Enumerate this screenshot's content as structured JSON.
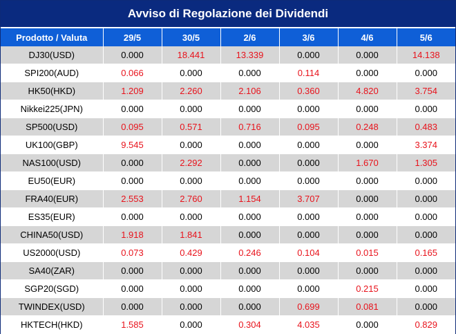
{
  "title": "Avviso di Regolazione dei Dividendi",
  "header": {
    "product": "Prodotto / Valuta",
    "dates": [
      "29/5",
      "30/5",
      "2/6",
      "3/6",
      "4/6",
      "5/6"
    ]
  },
  "colors": {
    "title_bg": "#0a2a7f",
    "header_bg": "#0f5fd7",
    "row_alt_bg": "#d6d6d6",
    "positive_text": "#e8121b",
    "zero_text": "#000000"
  },
  "rows": [
    {
      "product": "DJ30(USD)",
      "values": [
        "0.000",
        "18.441",
        "13.339",
        "0.000",
        "0.000",
        "14.138"
      ]
    },
    {
      "product": "SPI200(AUD)",
      "values": [
        "0.066",
        "0.000",
        "0.000",
        "0.114",
        "0.000",
        "0.000"
      ]
    },
    {
      "product": "HK50(HKD)",
      "values": [
        "1.209",
        "2.260",
        "2.106",
        "0.360",
        "4.820",
        "3.754"
      ]
    },
    {
      "product": "Nikkei225(JPN)",
      "values": [
        "0.000",
        "0.000",
        "0.000",
        "0.000",
        "0.000",
        "0.000"
      ]
    },
    {
      "product": "SP500(USD)",
      "values": [
        "0.095",
        "0.571",
        "0.716",
        "0.095",
        "0.248",
        "0.483"
      ]
    },
    {
      "product": "UK100(GBP)",
      "values": [
        "9.545",
        "0.000",
        "0.000",
        "0.000",
        "0.000",
        "3.374"
      ]
    },
    {
      "product": "NAS100(USD)",
      "values": [
        "0.000",
        "2.292",
        "0.000",
        "0.000",
        "1.670",
        "1.305"
      ]
    },
    {
      "product": "EU50(EUR)",
      "values": [
        "0.000",
        "0.000",
        "0.000",
        "0.000",
        "0.000",
        "0.000"
      ]
    },
    {
      "product": "FRA40(EUR)",
      "values": [
        "2.553",
        "2.760",
        "1.154",
        "3.707",
        "0.000",
        "0.000"
      ]
    },
    {
      "product": "ES35(EUR)",
      "values": [
        "0.000",
        "0.000",
        "0.000",
        "0.000",
        "0.000",
        "0.000"
      ]
    },
    {
      "product": "CHINA50(USD)",
      "values": [
        "1.918",
        "1.841",
        "0.000",
        "0.000",
        "0.000",
        "0.000"
      ]
    },
    {
      "product": "US2000(USD)",
      "values": [
        "0.073",
        "0.429",
        "0.246",
        "0.104",
        "0.015",
        "0.165"
      ]
    },
    {
      "product": "SA40(ZAR)",
      "values": [
        "0.000",
        "0.000",
        "0.000",
        "0.000",
        "0.000",
        "0.000"
      ]
    },
    {
      "product": "SGP20(SGD)",
      "values": [
        "0.000",
        "0.000",
        "0.000",
        "0.000",
        "0.215",
        "0.000"
      ]
    },
    {
      "product": "TWINDEX(USD)",
      "values": [
        "0.000",
        "0.000",
        "0.000",
        "0.699",
        "0.081",
        "0.000"
      ]
    },
    {
      "product": "HKTECH(HKD)",
      "values": [
        "1.585",
        "0.000",
        "0.304",
        "4.035",
        "0.000",
        "0.829"
      ]
    }
  ]
}
